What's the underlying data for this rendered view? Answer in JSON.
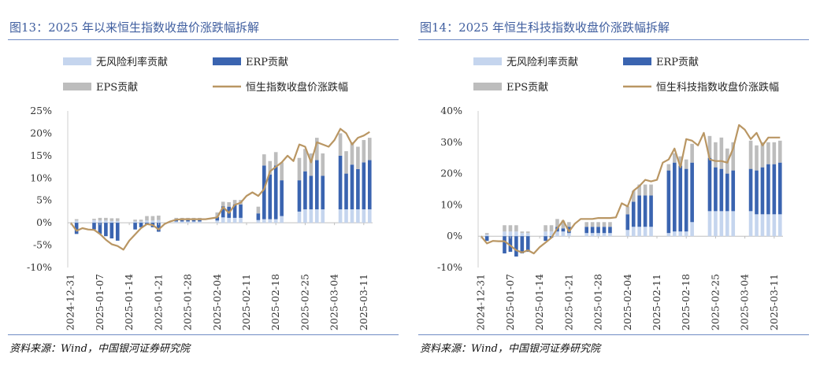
{
  "source_text": "资料来源：Wind，中国银河证券研究院",
  "colors": {
    "title": "#3f5e9f",
    "rule": "#6f8bc4",
    "rf": "#c5d5ee",
    "erp": "#3a64b0",
    "eps": "#bdbdbd",
    "line": "#b99663"
  },
  "chart_data": [
    {
      "type": "bar+line",
      "title": "图13：2025 年以来恒生指数收盘价涨跌幅拆解",
      "legend": [
        "无风险利率贡献",
        "ERP贡献",
        "EPS贡献",
        "恒生指数收盘价涨跌幅"
      ],
      "ylim": [
        -10,
        25
      ],
      "yticks": [
        "-10%",
        "-5%",
        "0%",
        "5%",
        "10%",
        "15%",
        "20%",
        "25%"
      ],
      "xticks": [
        "2024-12-31",
        "2025-01-07",
        "2025-01-14",
        "2025-01-21",
        "2025-01-28",
        "2025-02-04",
        "2025-02-11",
        "2025-02-18",
        "2025-02-25",
        "2025-03-04",
        "2025-03-11"
      ],
      "n": 52,
      "line": [
        0,
        -1.8,
        -1.2,
        -1.5,
        -1.6,
        -2.5,
        -3.8,
        -4.8,
        -5.2,
        -6.0,
        -4.0,
        -2.6,
        -1.2,
        -0.3,
        -0.5,
        -1.5,
        -0.3,
        0.3,
        0.7,
        0.8,
        0.8,
        0.8,
        0.8,
        0.8,
        1.0,
        1.2,
        3.5,
        2.2,
        4.0,
        4.5,
        6.0,
        6.8,
        6.0,
        7.5,
        11.5,
        12.5,
        13.5,
        15.0,
        13.8,
        17.5,
        17.0,
        13.5,
        18.0,
        17.5,
        17.0,
        18.5,
        21.0,
        20.0,
        17.5,
        19.0,
        19.5,
        20.3
      ],
      "gaps": [
        2,
        3,
        9,
        10,
        16,
        17,
        23,
        24,
        30,
        31,
        37,
        38,
        44,
        45
      ],
      "rf": [
        0,
        0.5,
        0.5,
        0.6,
        0.6,
        0.5,
        0.5,
        0.4,
        0.4,
        0.2,
        0.2,
        0.3,
        0.3,
        0.5,
        0.5,
        0.6,
        0.6,
        0.4,
        0.3,
        0.3,
        0.3,
        0.3,
        0.3,
        0.3,
        0.5,
        0.5,
        1.2,
        1.1,
        1.1,
        1.1,
        0.6,
        0.6,
        0.6,
        0.8,
        0.8,
        0.8,
        1.5,
        1.5,
        1.5,
        2.5,
        3.0,
        3.0,
        3.0,
        3.0,
        3.0,
        4.0,
        3.0,
        3.0,
        3.0,
        3.0,
        3.0,
        3.0
      ],
      "erp": [
        0,
        -2.5,
        -2.0,
        -1.8,
        -1.5,
        -2.5,
        -3.0,
        -3.5,
        -4.0,
        -2.3,
        -2.0,
        -1.5,
        -1.0,
        -0.5,
        -1.0,
        -2.0,
        -1.5,
        0.0,
        0.3,
        0.3,
        0.3,
        0.3,
        0.3,
        0.3,
        0.5,
        0.8,
        2.5,
        2.5,
        3.0,
        3.0,
        1.5,
        1.5,
        1.5,
        12.0,
        10.0,
        12.0,
        8.0,
        9.0,
        12.5,
        7.0,
        8.5,
        7.5,
        11.0,
        7.5,
        11.0,
        12.5,
        12.0,
        8.0,
        10.0,
        9.0,
        10.5,
        11.0
      ],
      "eps": [
        0,
        0.3,
        0.3,
        0.3,
        0.3,
        0.6,
        0.6,
        0.6,
        0.6,
        0.4,
        0.4,
        0.4,
        0.4,
        1.0,
        1.0,
        1.0,
        1.0,
        0.5,
        0.5,
        0.5,
        0.5,
        0.5,
        0.5,
        0.5,
        1.0,
        1.0,
        1.0,
        1.0,
        1.0,
        1.0,
        1.5,
        1.5,
        1.5,
        2.5,
        3.0,
        3.0,
        4.0,
        4.5,
        4.0,
        5.0,
        5.0,
        5.0,
        5.0,
        5.0,
        4.0,
        5.0,
        5.0,
        5.0,
        5.0,
        5.0,
        5.0,
        5.0
      ]
    },
    {
      "type": "bar+line",
      "title": "图14：2025 年恒生科技指数收盘价涨跌幅拆解",
      "legend": [
        "无风险利率贡献",
        "ERP贡献",
        "EPS贡献",
        "恒生科技指数收盘价涨跌幅"
      ],
      "ylim": [
        -10,
        40
      ],
      "yticks": [
        "-10%",
        "0%",
        "10%",
        "20%",
        "30%",
        "40%"
      ],
      "xticks": [
        "2024-12-31",
        "2025-01-07",
        "2025-01-14",
        "2025-01-21",
        "2025-01-28",
        "2025-02-04",
        "2025-02-11",
        "2025-02-18",
        "2025-02-25",
        "2025-03-04",
        "2025-03-11"
      ],
      "n": 52,
      "line": [
        0,
        -2.3,
        -1.5,
        -1.6,
        -1.6,
        -3.0,
        -4.5,
        -5.2,
        -4.5,
        -5.5,
        -3.5,
        -2.0,
        -0.5,
        2.5,
        5.0,
        1.5,
        4.0,
        5.5,
        5.5,
        5.5,
        5.8,
        5.8,
        5.8,
        6.0,
        10.5,
        9.5,
        14.5,
        16.0,
        18.0,
        17.5,
        18.0,
        23.5,
        24.5,
        28.0,
        22.0,
        31.0,
        30.5,
        29.0,
        33.0,
        24.5,
        24.0,
        24.0,
        23.5,
        28.0,
        35.5,
        34.0,
        31.0,
        33.0,
        29.0,
        31.5,
        31.5,
        31.5
      ],
      "gaps": [
        2,
        3,
        9,
        10,
        16,
        17,
        23,
        24,
        30,
        31,
        37,
        38,
        44,
        45
      ],
      "rf": [
        0,
        0.5,
        0.5,
        1.5,
        1.5,
        1.5,
        1.5,
        1.0,
        1.0,
        1.5,
        1.5,
        1.5,
        1.5,
        1.5,
        1.5,
        1.0,
        1.0,
        1.0,
        1.0,
        1.0,
        1.0,
        1.0,
        1.0,
        1.0,
        2.0,
        2.0,
        3.0,
        3.0,
        3.0,
        3.0,
        1.0,
        1.0,
        1.0,
        1.5,
        1.5,
        1.5,
        4.5,
        4.5,
        4.5,
        8.0,
        8.0,
        8.0,
        8.0,
        8.0,
        8.0,
        9.0,
        8.0,
        7.0,
        7.0,
        7.0,
        7.0,
        7.0
      ],
      "erp": [
        0,
        -1.5,
        -1.5,
        -4.0,
        -5.5,
        -5.0,
        -6.5,
        -5.5,
        -5.0,
        -4.0,
        -2.0,
        -1.5,
        -0.5,
        1.5,
        1.0,
        2.0,
        2.0,
        2.0,
        2.0,
        2.0,
        2.0,
        2.0,
        2.0,
        2.0,
        5.0,
        5.0,
        8.0,
        10.0,
        10.0,
        10.0,
        12.0,
        14.0,
        20.0,
        22.0,
        21.0,
        20.0,
        19.0,
        16.0,
        18.0,
        17.0,
        14.0,
        13.5,
        12.0,
        13.0,
        14.0,
        13.0,
        13.5,
        14.0,
        15.0,
        16.0,
        16.0,
        16.5
      ],
      "eps": [
        0,
        0.5,
        0.5,
        2.0,
        2.0,
        2.0,
        2.0,
        0.5,
        0.5,
        2.0,
        2.0,
        2.0,
        2.0,
        2.5,
        2.5,
        1.5,
        1.5,
        1.5,
        1.5,
        1.5,
        1.5,
        1.5,
        1.5,
        1.5,
        2.5,
        2.5,
        3.5,
        3.5,
        3.5,
        3.5,
        2.0,
        2.0,
        2.0,
        3.0,
        3.0,
        3.0,
        6.0,
        7.0,
        8.0,
        7.0,
        8.0,
        10.0,
        8.0,
        9.0,
        10.0,
        8.0,
        9.0,
        8.0,
        8.0,
        7.0,
        7.0,
        7.0
      ]
    }
  ]
}
